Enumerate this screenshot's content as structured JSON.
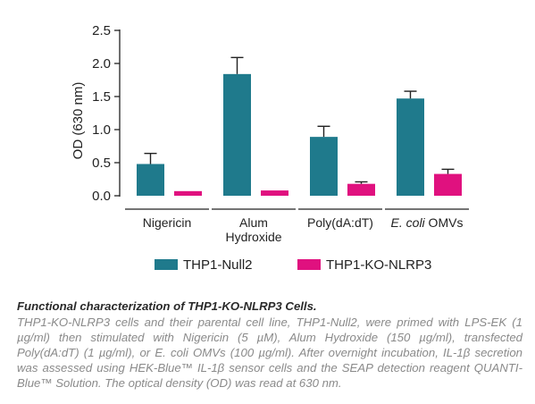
{
  "chart_data": {
    "type": "bar",
    "ylabel": "OD (630 nm)",
    "ylim": [
      0,
      2.5
    ],
    "yticks": [
      "0.0",
      "0.5",
      "1.0",
      "1.5",
      "2.0",
      "2.5"
    ],
    "categories": [
      {
        "label": "Nigericin",
        "label_line2": ""
      },
      {
        "label": "Alum",
        "label_line2": "Hydroxide"
      },
      {
        "label": "Poly(dA:dT)",
        "label_line2": ""
      },
      {
        "label": "E. coli OMVs",
        "label_line2": ""
      }
    ],
    "series": [
      {
        "name": "THP1-Null2",
        "color": "#1f7a8c",
        "values": [
          0.48,
          1.84,
          0.89,
          1.47
        ],
        "errors": [
          0.16,
          0.25,
          0.16,
          0.11
        ]
      },
      {
        "name": "THP1-KO-NLRP3",
        "color": "#e0117f",
        "values": [
          0.07,
          0.08,
          0.18,
          0.33
        ],
        "errors": [
          0.0,
          0.0,
          0.03,
          0.07
        ]
      }
    ],
    "grid": false,
    "legend_position": "bottom"
  },
  "caption": {
    "title": "Functional characterization of THP1-KO-NLRP3 Cells.",
    "body": "THP1-KO-NLRP3 cells and their parental cell line, THP1-Null2, were primed with LPS-EK (1 µg/ml) then stimulated with Nigericin (5 µM), Alum Hydroxide (150 µg/ml), transfected Poly(dA:dT) (1 µg/ml), or E. coli OMVs (100 µg/ml). After overnight incubation, IL-1β secretion was assessed using HEK-Blue™ IL-1β sensor cells and the SEAP detection reagent QUANTI-Blue™ Solution. The optical density (OD) was read at 630 nm."
  }
}
